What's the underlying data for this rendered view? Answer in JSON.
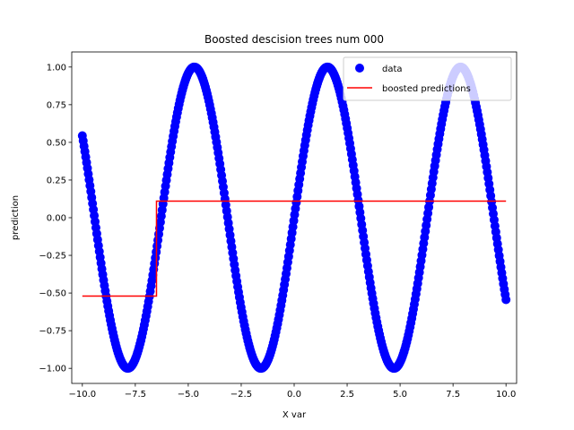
{
  "chart_data": {
    "type": "scatter",
    "title": "Boosted  descision trees num 000",
    "xlabel": "X var",
    "ylabel": "prediction",
    "xlim": [
      -10.5,
      10.5
    ],
    "ylim": [
      -1.1,
      1.1
    ],
    "x_ticks": [
      -10.0,
      -7.5,
      -5.0,
      -2.5,
      0.0,
      2.5,
      5.0,
      7.5,
      10.0
    ],
    "x_tick_labels": [
      "−10.0",
      "−7.5",
      "−5.0",
      "−2.5",
      "0.0",
      "2.5",
      "5.0",
      "7.5",
      "10.0"
    ],
    "y_ticks": [
      -1.0,
      -0.75,
      -0.5,
      -0.25,
      0.0,
      0.25,
      0.5,
      0.75,
      1.0
    ],
    "y_tick_labels": [
      "−1.00",
      "−0.75",
      "−0.50",
      "−0.25",
      "0.00",
      "0.25",
      "0.50",
      "0.75",
      "1.00"
    ],
    "grid": false,
    "legend_position": "top-right",
    "series": [
      {
        "name": "data",
        "kind": "markers",
        "color": "#0000ff",
        "function": "sin(x)",
        "x_range": [
          -10.0,
          10.0
        ],
        "num_points": 500
      },
      {
        "name": "boosted predictions",
        "kind": "step-line",
        "color": "#ff0000",
        "x": [
          -10.0,
          -6.5,
          -6.5,
          10.0
        ],
        "y": [
          -0.52,
          -0.52,
          0.11,
          0.11
        ]
      }
    ]
  }
}
